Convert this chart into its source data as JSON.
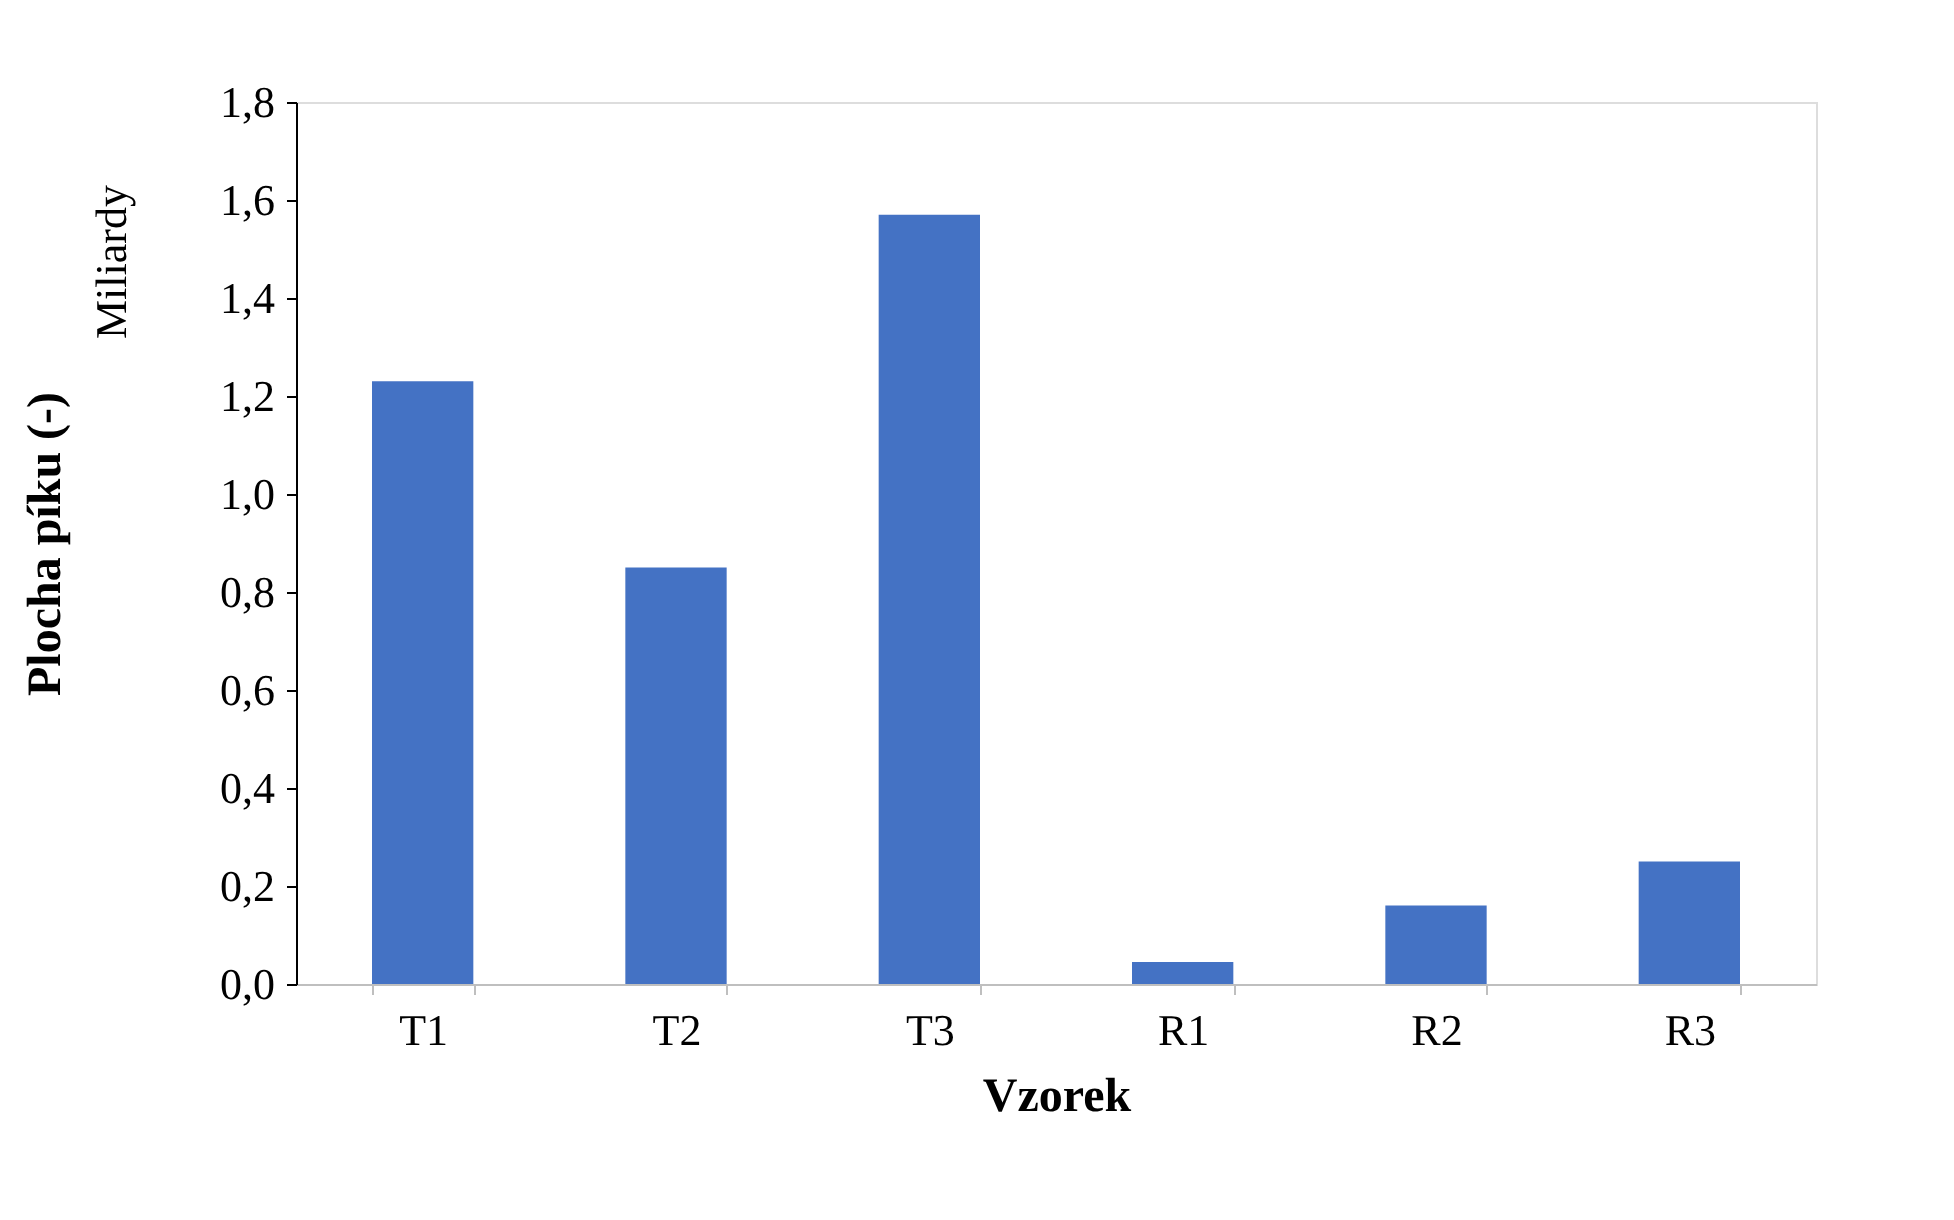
{
  "chart_data": {
    "type": "bar",
    "categories": [
      "T1",
      "T2",
      "T3",
      "R1",
      "R2",
      "R3"
    ],
    "values": [
      1.23,
      0.85,
      1.57,
      0.045,
      0.16,
      0.25
    ],
    "color": "#4472c4",
    "xlabel": "Vzorek",
    "ylabel": "Plocha píku (-)",
    "annotations": [
      "Miliardy"
    ],
    "ylim": [
      0,
      1.8
    ],
    "yticks": [
      {
        "value": 0,
        "label": "0,0"
      },
      {
        "value": 0.2,
        "label": "0,2"
      },
      {
        "value": 0.4,
        "label": "0,4"
      },
      {
        "value": 0.6,
        "label": "0,6"
      },
      {
        "value": 0.8,
        "label": "0,8"
      },
      {
        "value": 1.0,
        "label": "1,0"
      },
      {
        "value": 1.2,
        "label": "1,2"
      },
      {
        "value": 1.4,
        "label": "1,4"
      },
      {
        "value": 1.6,
        "label": "1,6"
      },
      {
        "value": 1.8,
        "label": "1,8"
      }
    ],
    "grid": false
  }
}
